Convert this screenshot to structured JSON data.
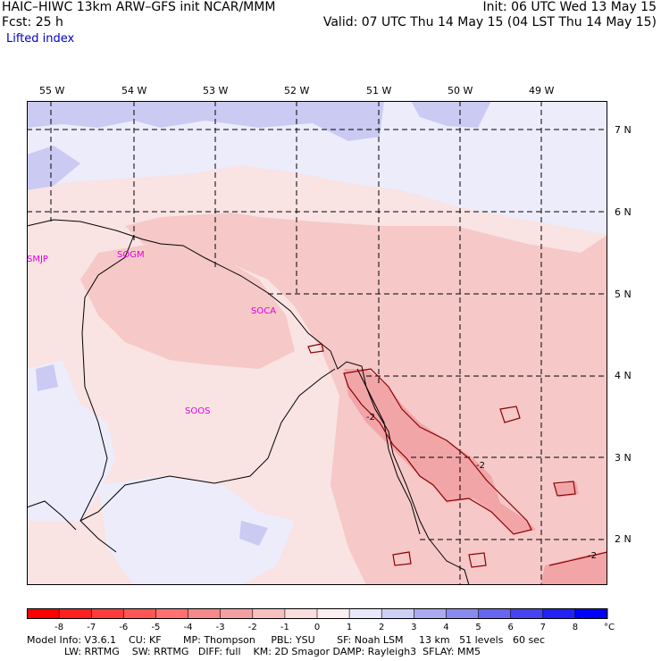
{
  "header": {
    "model_title": "HAIC–HIWC 13km ARW–GFS init   NCAR/MMM",
    "forecast": "Fcst:    25 h",
    "field_name": "Lifted index",
    "init_time": "Init: 06 UTC Wed 13 May 15",
    "valid_time": "Valid: 07 UTC Thu 14 May 15 (04 LST Thu 14 May 15)"
  },
  "map": {
    "longitude_labels": [
      "55 W",
      "54 W",
      "53 W",
      "52 W",
      "51 W",
      "50 W",
      "49 W"
    ],
    "latitude_labels": [
      "7 N",
      "6 N",
      "5 N",
      "4 N",
      "3 N",
      "2 N"
    ],
    "stations": [
      {
        "id": "SMJP"
      },
      {
        "id": "SOGM"
      },
      {
        "id": "SOCA"
      },
      {
        "id": "SOOS"
      }
    ],
    "contour_labels": [
      "-2",
      "-2",
      "-2"
    ],
    "colors": {
      "neutral_pink": "#f9e3e3",
      "light_pink": "#f6c8c8",
      "medium_pink": "#f2a5a7",
      "light_blue_tint": "#ececfb",
      "light_blue": "#cacaf3",
      "station_magenta": "#e000e0",
      "border": "#000000",
      "contour": "#8b0000"
    }
  },
  "colorbar": {
    "tick_labels": [
      "-8",
      "-7",
      "-6",
      "-5",
      "-4",
      "-3",
      "-2",
      "-1",
      "0",
      "1",
      "2",
      "3",
      "4",
      "5",
      "6",
      "7",
      "8"
    ],
    "unit": "°C",
    "colors": [
      "#ff0000",
      "#ff2020",
      "#ff3c3c",
      "#ff5555",
      "#ff7070",
      "#f58888",
      "#f4a0a2",
      "#f6bfc0",
      "#f9dede",
      "#fbeeee",
      "#e8e8fa",
      "#cfcff5",
      "#aaaaf0",
      "#8a8aef",
      "#6666f0",
      "#4444f2",
      "#2222f6",
      "#0000ff"
    ]
  },
  "footer": {
    "line1": "Model Info: V3.6.1    CU: KF       MP: Thompson     PBL: YSU       SF: Noah LSM     13 km   51 levels   60 sec",
    "line2": "            LW: RRTMG    SW: RRTMG   DIFF: full    KM: 2D Smagor DAMP: Rayleigh3  SFLAY: MM5"
  }
}
